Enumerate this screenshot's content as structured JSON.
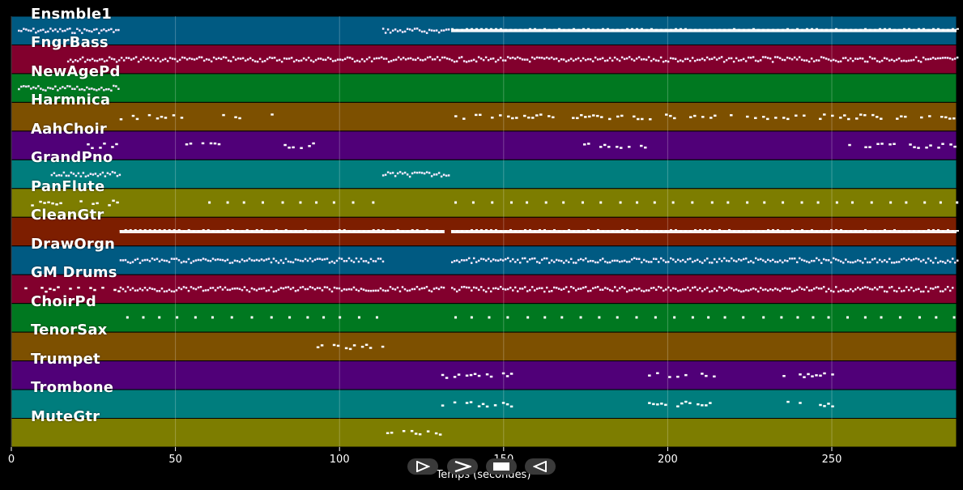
{
  "chart_data": {
    "type": "piano-roll",
    "xlabel": "Temps (secondes)",
    "xlim": [
      0,
      288
    ],
    "xticks": [
      0,
      50,
      100,
      150,
      200,
      250
    ],
    "tracks": [
      {
        "name": "Ensmble1",
        "color": "#005a82",
        "segments": [
          [
            2,
            33,
            "dense"
          ],
          [
            113,
            133,
            "dense"
          ],
          [
            134,
            288,
            "solid"
          ]
        ]
      },
      {
        "name": "FngrBass",
        "color": "#82002d",
        "segments": [
          [
            17,
            288,
            "dense"
          ]
        ]
      },
      {
        "name": "NewAgePd",
        "color": "#007820",
        "segments": [
          [
            2,
            33,
            "dense"
          ]
        ]
      },
      {
        "name": "Harmnica",
        "color": "#7d5000",
        "segments": [
          [
            33,
            53,
            "sparse"
          ],
          [
            63,
            81,
            "sparse"
          ],
          [
            135,
            288,
            "sparse"
          ]
        ]
      },
      {
        "name": "AahChoir",
        "color": "#500078",
        "segments": [
          [
            23,
            32,
            "sparse"
          ],
          [
            53,
            63,
            "sparse"
          ],
          [
            83,
            92,
            "sparse"
          ],
          [
            173,
            193,
            "sparse"
          ],
          [
            255,
            288,
            "sparse"
          ]
        ]
      },
      {
        "name": "GrandPno",
        "color": "#007d7d",
        "segments": [
          [
            12,
            33,
            "dense"
          ],
          [
            113,
            133,
            "dense"
          ]
        ]
      },
      {
        "name": "PanFlute",
        "color": "#7d7d00",
        "segments": [
          [
            6,
            33,
            "sparse"
          ],
          [
            60,
            110,
            "dots"
          ],
          [
            135,
            288,
            "dots"
          ]
        ]
      },
      {
        "name": "CleanGtr",
        "color": "#7d1e00",
        "segments": [
          [
            33,
            132,
            "solid"
          ],
          [
            134,
            288,
            "solid"
          ]
        ]
      },
      {
        "name": "DrawOrgn",
        "color": "#005a82",
        "segments": [
          [
            33,
            113,
            "dense"
          ],
          [
            134,
            288,
            "dense"
          ]
        ]
      },
      {
        "name": "GM Drums",
        "color": "#82002d",
        "segments": [
          [
            4,
            33,
            "sparse"
          ],
          [
            33,
            132,
            "dense"
          ],
          [
            134,
            287,
            "dense"
          ]
        ]
      },
      {
        "name": "ChoirPd",
        "color": "#007820",
        "segments": [
          [
            35,
            112,
            "dots"
          ],
          [
            135,
            288,
            "dots"
          ]
        ]
      },
      {
        "name": "TenorSax",
        "color": "#7d5000",
        "segments": [
          [
            93,
            114,
            "sparse"
          ]
        ]
      },
      {
        "name": "Trumpet",
        "color": "#500078",
        "segments": [
          [
            131,
            152,
            "sparse"
          ],
          [
            194,
            214,
            "sparse"
          ],
          [
            235,
            252,
            "sparse"
          ]
        ]
      },
      {
        "name": "Trombone",
        "color": "#007d7d",
        "segments": [
          [
            131,
            152,
            "sparse"
          ],
          [
            194,
            214,
            "sparse"
          ],
          [
            235,
            252,
            "sparse"
          ]
        ]
      },
      {
        "name": "MuteGtr",
        "color": "#7d7d00",
        "segments": [
          [
            113,
            131,
            "sparse"
          ]
        ]
      }
    ]
  },
  "controls": {
    "rewind": "rewind-button",
    "play": "play-button",
    "stop": "stop-button",
    "forward": "forward-button"
  }
}
